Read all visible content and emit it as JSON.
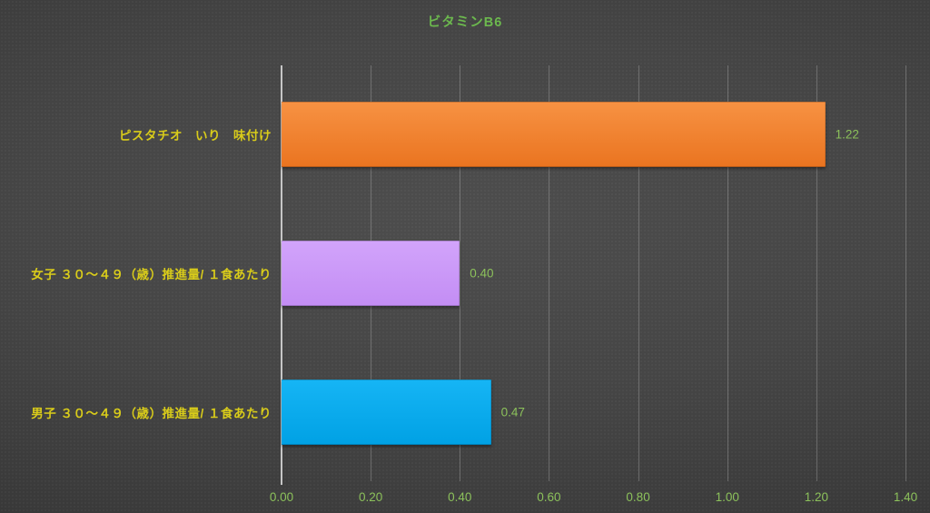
{
  "colors": {
    "background_center": "#4d4d4d",
    "background_edge": "#282828",
    "title_green": "#6cb94e",
    "value_green": "#8cc15b",
    "tick_green": "#8cc15b",
    "category_yellow": "#d9cc1a",
    "axis_line": "#c6c6c6",
    "gridline": "rgba(210,210,210,0.30)"
  },
  "chart_data": {
    "type": "bar",
    "orientation": "horizontal",
    "title": "ビタミンB6",
    "categories": [
      "ピスタチオ　いり　味付け",
      "女子 ３０～４９（歳）推進量/ １食あたり",
      "男子 ３０～４９（歳）推進量/ １食あたり"
    ],
    "values": [
      1.22,
      0.4,
      0.47
    ],
    "value_labels": [
      "1.22",
      "0.40",
      "0.47"
    ],
    "bar_colors": [
      "#ED7D31",
      "#CC99FF",
      "#00B0F0"
    ],
    "bar_gradients": [
      [
        "#F79243",
        "#EA7420"
      ],
      [
        "#D2A4FB",
        "#C38DF4"
      ],
      [
        "#16B5F5",
        "#00A1E4"
      ]
    ],
    "xlim": [
      0,
      1.4
    ],
    "x_tick_values": [
      0.0,
      0.2,
      0.4,
      0.6,
      0.8,
      1.0,
      1.2,
      1.4
    ],
    "x_tick_labels": [
      "0.00",
      "0.20",
      "0.40",
      "0.60",
      "0.80",
      "1.00",
      "1.20",
      "1.40"
    ],
    "grid": true,
    "legend": false
  }
}
